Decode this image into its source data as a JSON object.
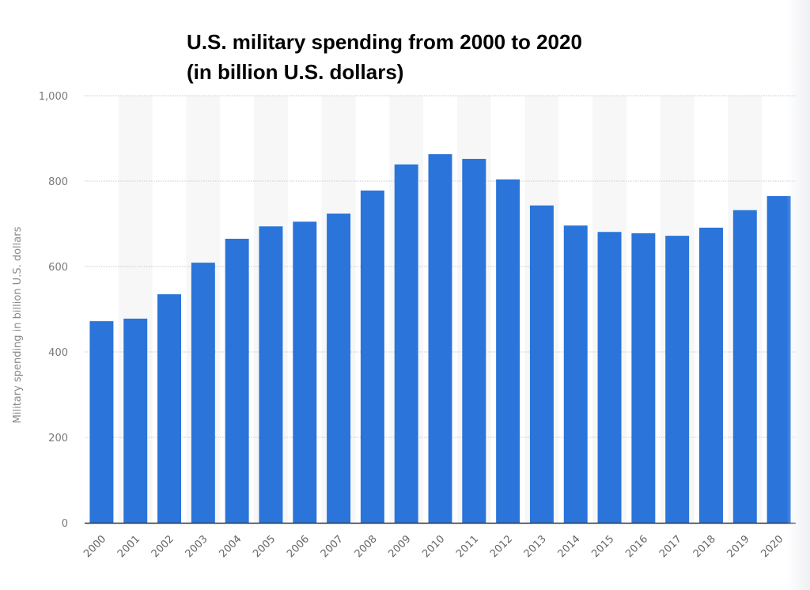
{
  "chart_data": {
    "type": "bar",
    "title": "U.S. military spending from 2000 to 2020",
    "subtitle": "(in billion U.S. dollars)",
    "xlabel": "",
    "ylabel": "Military spending in billion U.S. dollars",
    "categories": [
      "2000",
      "2001",
      "2002",
      "2003",
      "2004",
      "2005",
      "2006",
      "2007",
      "2008",
      "2009",
      "2010",
      "2011",
      "2012",
      "2013",
      "2014",
      "2015",
      "2016",
      "2017",
      "2018",
      "2019",
      "2020"
    ],
    "values": [
      472,
      478,
      535,
      609,
      665,
      694,
      705,
      724,
      778,
      839,
      863,
      852,
      804,
      743,
      696,
      681,
      678,
      672,
      691,
      732,
      765
    ],
    "ylim": [
      0,
      1000
    ],
    "yticks": [
      0,
      200,
      400,
      600,
      800,
      1000
    ],
    "ytick_labels": [
      "0",
      "200",
      "400",
      "600",
      "800",
      "1,000"
    ],
    "grid": true,
    "legend": "none",
    "bar_color": "#2a74da",
    "alt_band_color": "#f7f7f7"
  }
}
